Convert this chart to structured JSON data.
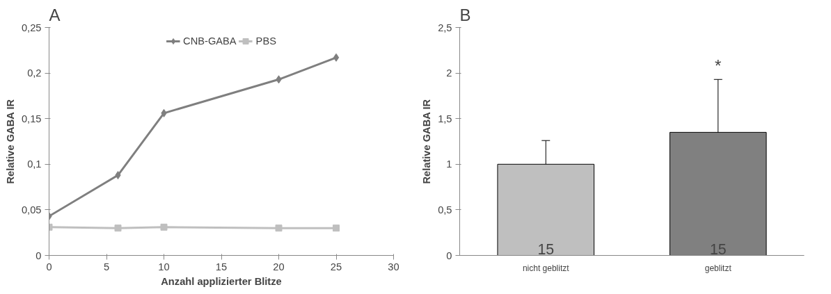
{
  "chart_data": [
    {
      "type": "line",
      "title": "A",
      "xlabel": "Anzahl applizierter Blitze",
      "ylabel": "Relative GABA IR",
      "xlim": [
        0,
        30
      ],
      "xticks": [
        0,
        5,
        10,
        15,
        20,
        25,
        30
      ],
      "ylim": [
        0,
        0.25
      ],
      "yticks": [
        0,
        {
          "value": 0.05,
          "label": "0,05"
        },
        {
          "value": 0.1,
          "label": "0,1"
        },
        {
          "value": 0.15,
          "label": "0,15"
        },
        {
          "value": 0.2,
          "label": "0,2"
        },
        {
          "value": 0.25,
          "label": "0,25"
        }
      ],
      "legend": "top",
      "grid": false,
      "series": [
        {
          "name": "CNB-GABA",
          "color": "#7f7f7f",
          "marker": "diamond",
          "x": [
            0,
            6,
            10,
            20,
            25
          ],
          "values": [
            0.043,
            0.088,
            0.156,
            0.193,
            0.217
          ]
        },
        {
          "name": "PBS",
          "color": "#bfbfbf",
          "marker": "square",
          "x": [
            0,
            6,
            10,
            20,
            25
          ],
          "values": [
            0.031,
            0.03,
            0.031,
            0.03,
            0.03
          ]
        }
      ]
    },
    {
      "type": "bar",
      "title": "B",
      "ylabel": "Relative GABA IR",
      "categories": [
        "nicht geblitzt",
        "geblitzt"
      ],
      "values": [
        1.0,
        1.35
      ],
      "colors": [
        "#bfbfbf",
        "#808080"
      ],
      "errors": [
        [
          1.0,
          1.26
        ],
        [
          1.35,
          1.93
        ]
      ],
      "ylim": [
        0,
        2.5
      ],
      "yticks": [
        0,
        {
          "value": 0.5,
          "label": "0,5"
        },
        1,
        {
          "value": 1.5,
          "label": "1,5"
        },
        2,
        {
          "value": 2.5,
          "label": "2,5"
        }
      ],
      "grid": false,
      "annotations": [
        "15",
        "15",
        "*"
      ]
    }
  ]
}
